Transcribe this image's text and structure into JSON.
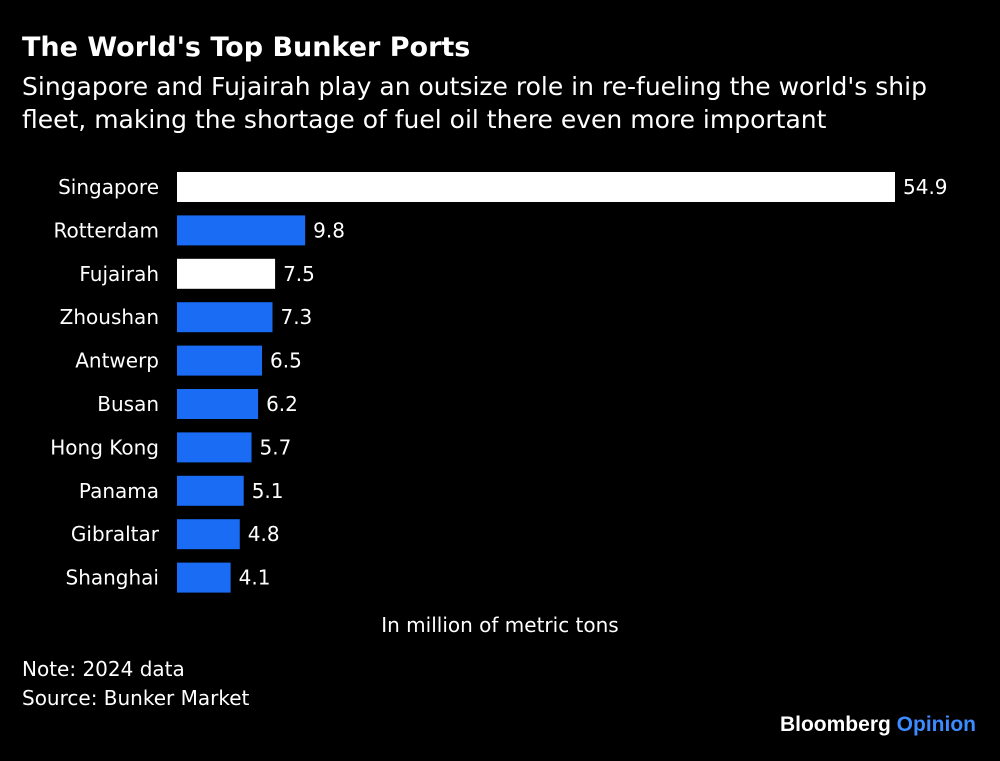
{
  "header": {
    "title": "The World's Top Bunker Ports",
    "subtitle": "Singapore and Fujairah play an outsize role in re-fueling the world's ship fleet, making the shortage of fuel oil there even more important"
  },
  "chart_data": {
    "type": "bar",
    "orientation": "horizontal",
    "categories": [
      "Singapore",
      "Rotterdam",
      "Fujairah",
      "Zhoushan",
      "Antwerp",
      "Busan",
      "Hong Kong",
      "Panama",
      "Gibraltar",
      "Shanghai"
    ],
    "values": [
      54.9,
      9.8,
      7.5,
      7.3,
      6.5,
      6.2,
      5.7,
      5.1,
      4.8,
      4.1
    ],
    "highlighted": [
      "Singapore",
      "Fujairah"
    ],
    "highlight_color": "#ffffff",
    "bar_color": "#1a6cf5",
    "xlabel": "In million of metric tons",
    "xlim": [
      0,
      54.9
    ]
  },
  "footer": {
    "note": "Note: 2024 data",
    "source": "Source: Bunker Market",
    "logo_brand": "Bloomberg",
    "logo_product": "Opinion"
  }
}
